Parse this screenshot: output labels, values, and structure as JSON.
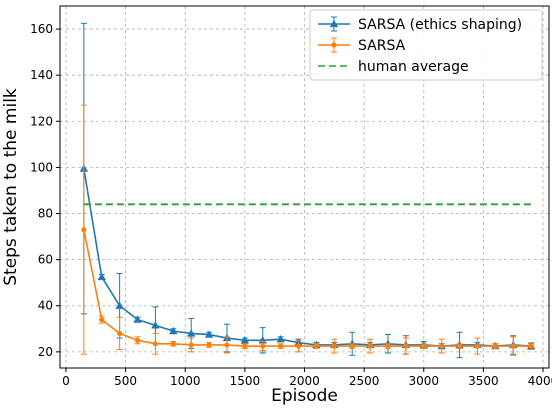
{
  "chart_data": {
    "type": "line",
    "xlabel": "Episode",
    "ylabel": "Steps taken to the milk",
    "xlim": [
      -50,
      4050
    ],
    "ylim": [
      13,
      170
    ],
    "xticks": [
      0,
      500,
      1000,
      1500,
      2000,
      2500,
      3000,
      3500,
      4000
    ],
    "yticks": [
      20,
      40,
      60,
      80,
      100,
      120,
      140,
      160
    ],
    "grid": true,
    "legend_position": "top-right",
    "series": [
      {
        "name": "SARSA (ethics shaping)",
        "color": "#1f77b4",
        "marker": "triangle",
        "x": [
          150,
          300,
          450,
          600,
          750,
          900,
          1050,
          1200,
          1350,
          1500,
          1650,
          1800,
          1950,
          2100,
          2250,
          2400,
          2550,
          2700,
          2850,
          3000,
          3150,
          3300,
          3450,
          3600,
          3750,
          3900
        ],
        "y": [
          99.5,
          52.5,
          40,
          34,
          31.5,
          29,
          28,
          27.5,
          26,
          25,
          25,
          25.5,
          24,
          23,
          23,
          23.5,
          23,
          23.5,
          23,
          23,
          22.5,
          23,
          23,
          22.5,
          23,
          22.5
        ],
        "err": [
          63,
          1,
          14,
          1,
          8,
          1,
          6.5,
          1,
          6,
          1,
          5.5,
          1,
          1.5,
          1,
          1,
          5,
          1,
          4,
          4,
          1.5,
          1,
          5.5,
          1,
          1,
          4,
          1
        ]
      },
      {
        "name": "SARSA",
        "color": "#ff7f0e",
        "marker": "circle",
        "x": [
          150,
          300,
          450,
          600,
          750,
          900,
          1050,
          1200,
          1350,
          1500,
          1650,
          1800,
          1950,
          2100,
          2250,
          2400,
          2550,
          2700,
          2850,
          3000,
          3150,
          3300,
          3450,
          3600,
          3750,
          3900
        ],
        "y": [
          73,
          34,
          28,
          25,
          23.5,
          23.5,
          23,
          23,
          23,
          22.5,
          22.5,
          22.5,
          22.5,
          22.5,
          22.5,
          22.5,
          22.5,
          22.5,
          22.5,
          22.5,
          22.5,
          22.5,
          22.5,
          22.5,
          22.5,
          22.5
        ],
        "err": [
          54,
          1.5,
          7,
          1.5,
          4.5,
          1,
          3,
          1,
          3.5,
          1,
          2,
          1,
          2.5,
          1,
          3,
          1,
          3,
          1,
          3.5,
          1,
          3,
          1,
          3.5,
          1,
          4,
          1.5
        ]
      },
      {
        "name": "human average",
        "color": "#2ca02c",
        "style": "dashed",
        "x": [
          150,
          3900
        ],
        "y": [
          84,
          84
        ]
      }
    ]
  }
}
